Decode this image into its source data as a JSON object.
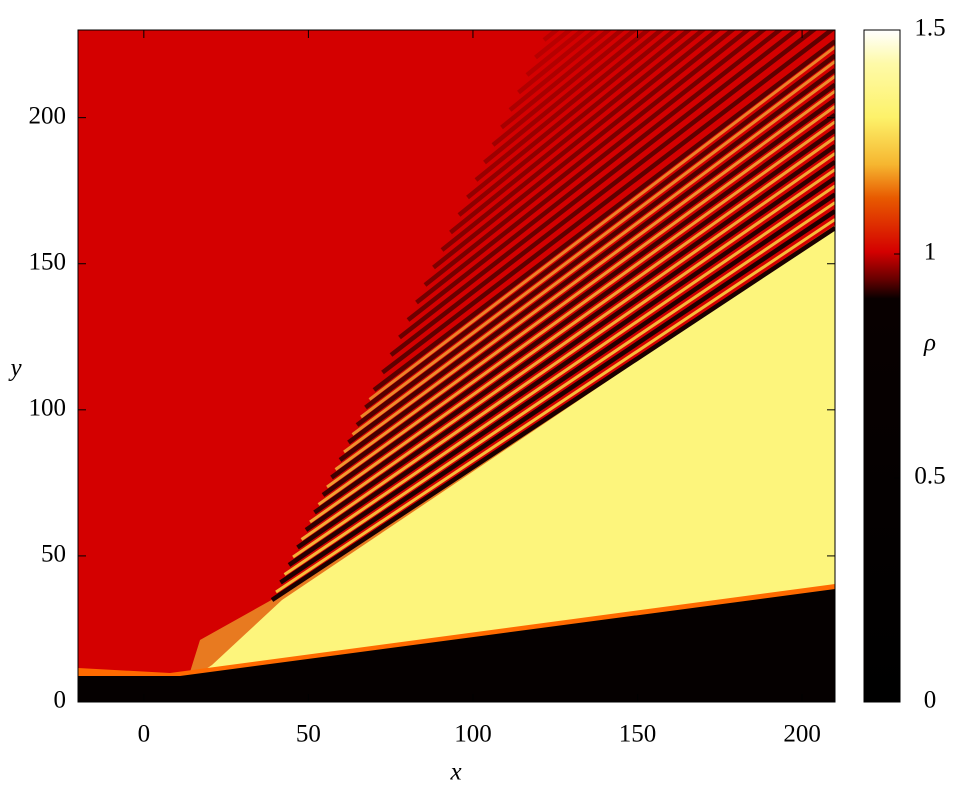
{
  "chart_data": {
    "type": "heatmap",
    "xlabel": "x",
    "ylabel": "y",
    "xlim": [
      -20,
      210
    ],
    "ylim": [
      0,
      230
    ],
    "xticks": [
      0,
      50,
      100,
      150,
      200
    ],
    "yticks": [
      0,
      50,
      100,
      150,
      200
    ],
    "colorbar": {
      "label": "ρ",
      "lim": [
        0,
        1.5
      ],
      "ticks": [
        0,
        0.5,
        1,
        1.5
      ]
    }
  }
}
